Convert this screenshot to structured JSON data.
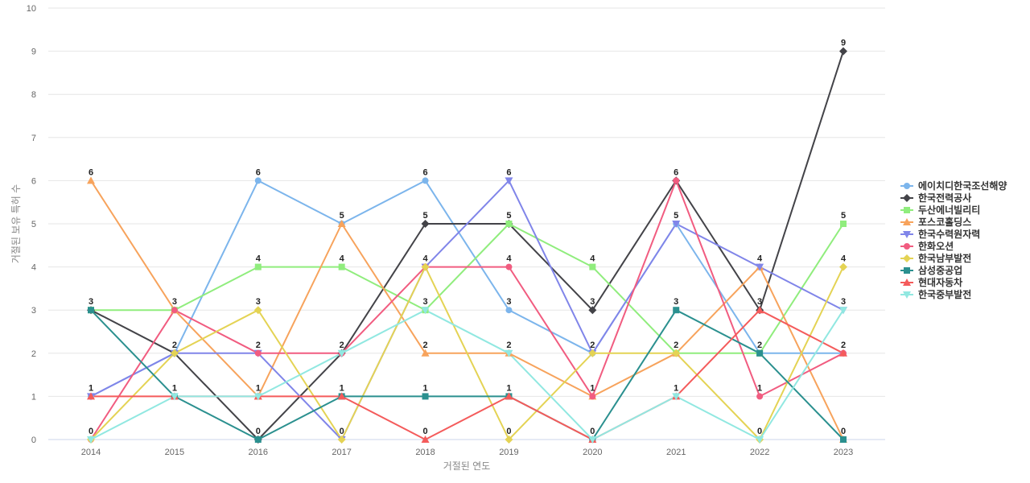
{
  "chart_data": {
    "type": "line",
    "xlabel": "거절된 연도",
    "ylabel": "거절된 보유 특허 수",
    "ylim": [
      0,
      10
    ],
    "yticks": [
      "0",
      "1",
      "2",
      "3",
      "4",
      "5",
      "6",
      "7",
      "8",
      "9",
      "10"
    ],
    "categories": [
      "2014",
      "2015",
      "2016",
      "2017",
      "2018",
      "2019",
      "2020",
      "2021",
      "2022",
      "2023"
    ],
    "grid": true,
    "legend_position": "right",
    "series": [
      {
        "name": "에이치디한국조선해양",
        "color": "#7cb5ec",
        "marker": "circle",
        "values": [
          1,
          2,
          6,
          5,
          6,
          3,
          2,
          5,
          2,
          2
        ]
      },
      {
        "name": "한국전력공사",
        "color": "#434348",
        "marker": "diamond",
        "values": [
          3,
          2,
          0,
          2,
          5,
          5,
          3,
          6,
          3,
          9
        ]
      },
      {
        "name": "두산에너빌리티",
        "color": "#90ed7d",
        "marker": "square",
        "values": [
          3,
          3,
          4,
          4,
          3,
          5,
          4,
          2,
          2,
          5
        ]
      },
      {
        "name": "포스코홀딩스",
        "color": "#f7a35c",
        "marker": "triangle",
        "values": [
          6,
          3,
          1,
          5,
          2,
          2,
          1,
          2,
          4,
          0
        ]
      },
      {
        "name": "한국수력원자력",
        "color": "#8085e9",
        "marker": "triangle-down",
        "values": [
          1,
          2,
          2,
          0,
          4,
          6,
          2,
          5,
          4,
          3
        ]
      },
      {
        "name": "한화오션",
        "color": "#f15c80",
        "marker": "circle",
        "values": [
          0,
          3,
          2,
          2,
          4,
          4,
          1,
          6,
          1,
          2
        ]
      },
      {
        "name": "한국남부발전",
        "color": "#e4d354",
        "marker": "diamond",
        "values": [
          0,
          2,
          3,
          0,
          4,
          0,
          2,
          2,
          0,
          4
        ]
      },
      {
        "name": "삼성중공업",
        "color": "#2b908f",
        "marker": "square",
        "values": [
          3,
          1,
          0,
          1,
          1,
          1,
          0,
          3,
          2,
          0
        ]
      },
      {
        "name": "현대자동차",
        "color": "#f45b5b",
        "marker": "triangle",
        "values": [
          1,
          1,
          1,
          1,
          0,
          1,
          0,
          1,
          3,
          2
        ]
      },
      {
        "name": "한국중부발전",
        "color": "#91e8e1",
        "marker": "triangle-down",
        "values": [
          0,
          1,
          1,
          2,
          3,
          2,
          0,
          1,
          0,
          3
        ]
      }
    ],
    "data_labels": {
      "values": [
        3,
        3,
        6,
        5,
        6,
        6,
        4,
        6,
        4,
        9
      ],
      "values_mid_upper": [
        1,
        2,
        4,
        4,
        5,
        5,
        3,
        5,
        3,
        5
      ],
      "values_mid": [
        1,
        2,
        3,
        2,
        4,
        4,
        2,
        3,
        3,
        4
      ],
      "values_mid_lower": [
        0,
        1,
        2,
        1,
        3,
        3,
        2,
        2,
        2,
        3
      ],
      "values_low": [
        0,
        1,
        1,
        0,
        2,
        2,
        1,
        2,
        1,
        2
      ],
      "values_bottom": [
        0,
        1,
        0,
        0,
        1,
        1,
        0,
        1,
        0,
        0
      ],
      "values_zero": [
        0,
        0,
        0,
        0,
        0,
        0,
        0,
        0,
        0,
        0
      ]
    }
  }
}
